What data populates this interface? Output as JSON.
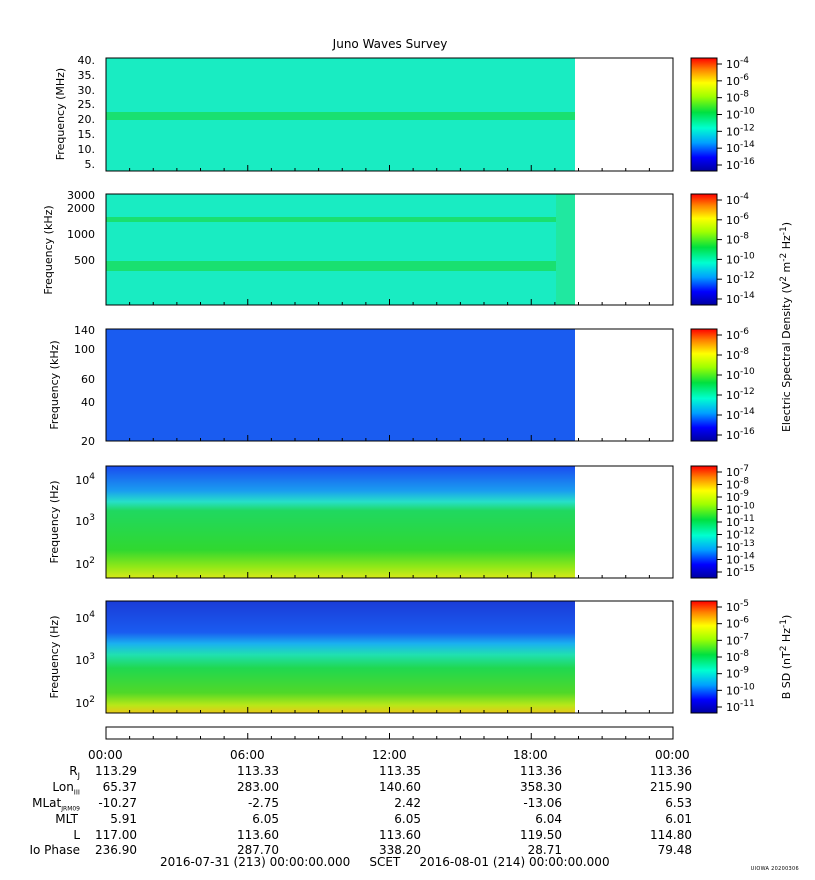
{
  "title": "Juno Waves Survey",
  "credit": "UIOWA 20200306",
  "colors": {
    "background_field": "#19ecc2",
    "blue_field": "#1a5cf0",
    "band_green": "#19e070"
  },
  "chart_data": [
    {
      "type": "heatmap",
      "title": "",
      "ylabel": "Frequency (MHz)",
      "yticks": [
        "40.",
        "35.",
        "30.",
        "25.",
        "20.",
        "15.",
        "10.",
        "5."
      ],
      "ylim": [
        3.5,
        41.5
      ],
      "colorbar_label": "",
      "colorbar_ticks": [
        -4,
        -6,
        -8,
        -10,
        -12,
        -14,
        -16
      ],
      "data_end_fraction_of_day": 0.818,
      "features": [
        {
          "kind": "band",
          "y": 21.5,
          "description": ""
        }
      ]
    },
    {
      "type": "heatmap",
      "title": "",
      "ylabel": "Frequency (kHz)",
      "yticks": [
        3000,
        2000,
        1000,
        500
      ],
      "ylim": [
        150,
        3000
      ],
      "y_scale": "log",
      "colorbar_label": "Electric Spectral Density (V² m⁻² Hz⁻¹)",
      "colorbar_ticks": [
        -4,
        -6,
        -8,
        -10,
        -12,
        -14
      ],
      "data_end_fraction_of_day": 0.818
    },
    {
      "type": "heatmap",
      "title": "",
      "ylabel": "Frequency (kHz)",
      "yticks": [
        140,
        100,
        60,
        40,
        20
      ],
      "ylim": [
        20,
        140
      ],
      "y_scale": "log",
      "colorbar_label": "",
      "colorbar_ticks": [
        -6,
        -8,
        -10,
        -12,
        -14,
        -16
      ],
      "data_end_fraction_of_day": 0.818
    },
    {
      "type": "heatmap",
      "title": "",
      "ylabel": "Frequency (Hz)",
      "yticks": [
        "10^4",
        "10^3",
        "10^2"
      ],
      "ylim": [
        50,
        20000
      ],
      "y_scale": "log",
      "colorbar_label": "",
      "colorbar_ticks": [
        -7,
        -8,
        -9,
        -10,
        -11,
        -12,
        -13,
        -14,
        -15
      ],
      "data_end_fraction_of_day": 0.818
    },
    {
      "type": "heatmap",
      "title": "",
      "ylabel": "Frequency (Hz)",
      "yticks": [
        "10^4",
        "10^3",
        "10^2"
      ],
      "ylim": [
        50,
        20000
      ],
      "y_scale": "log",
      "colorbar_label": "B SD (nT² Hz⁻¹)",
      "colorbar_ticks": [
        -5,
        -6,
        -7,
        -8,
        -9,
        -10,
        -11
      ],
      "data_end_fraction_of_day": 0.818
    }
  ],
  "time_axis": {
    "labels": [
      "00:00",
      "06:00",
      "12:00",
      "18:00",
      "00:00"
    ]
  },
  "ephemeris": [
    {
      "label": "R_J",
      "values": [
        "113.29",
        "113.33",
        "113.35",
        "113.36",
        "113.36"
      ]
    },
    {
      "label": "Lon_III",
      "values": [
        "65.37",
        "283.00",
        "140.60",
        "358.30",
        "215.90"
      ]
    },
    {
      "label": "MLat_JRM09",
      "values": [
        "-10.27",
        "-2.75",
        "2.42",
        "-13.06",
        "6.53"
      ]
    },
    {
      "label": "MLT",
      "values": [
        "5.91",
        "6.05",
        "6.05",
        "6.04",
        "6.01"
      ]
    },
    {
      "label": "L",
      "values": [
        "117.00",
        "113.60",
        "113.60",
        "119.50",
        "114.80"
      ]
    },
    {
      "label": "Io Phase",
      "values": [
        "236.90",
        "287.70",
        "338.20",
        "28.71",
        "79.48"
      ]
    }
  ],
  "footer": {
    "start": "2016-07-31 (213) 00:00:00.000",
    "frame": "SCET",
    "end": "2016-08-01 (214) 00:00:00.000"
  }
}
